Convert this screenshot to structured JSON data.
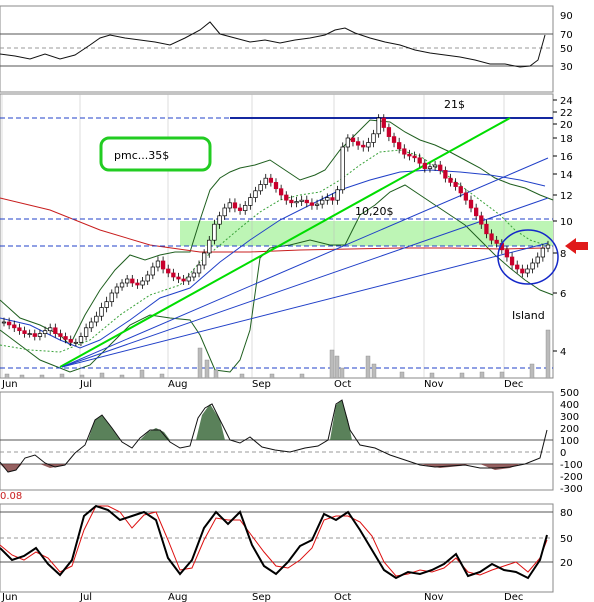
{
  "chart_data": {
    "type": "candlestick",
    "months": [
      "Jun",
      "Jul",
      "Aug",
      "Sep",
      "Oct",
      "Nov",
      "Dec"
    ],
    "price_ticks": [
      4,
      6,
      8,
      10,
      12,
      14,
      16,
      18,
      20,
      22,
      24
    ],
    "rsi_ticks": [
      30,
      50,
      70,
      90
    ],
    "mid_ticks": [
      500,
      400,
      300,
      200,
      100,
      0,
      -100,
      -200,
      -300
    ],
    "stoch_ticks": [
      20,
      50,
      80
    ],
    "corner_label": "0.08",
    "annotations": {
      "target_label": "pmc...35$",
      "resistance_label": "21$",
      "support_label": "10,20$",
      "island_label": "Island"
    },
    "levels": {
      "resistance": 21,
      "support": 10.2,
      "lower_support": 8.4
    },
    "series": [
      {
        "name": "price_close",
        "x": [
          "Jun",
          "Jul",
          "Aug",
          "Sep",
          "Oct",
          "Nov",
          "Dec"
        ],
        "values": [
          4.6,
          5.0,
          6.4,
          11.5,
          17.5,
          11.0,
          8.3
        ]
      }
    ],
    "colors": {
      "up": "#000000",
      "down": "#c8002c",
      "ma_short": "#3aa23a",
      "ma_long": "#c81e1e",
      "bands": "#2e6a2e",
      "trend_green": "#00dd00",
      "trend_blue": "#2140c8",
      "fill_green": "#bdf5b5"
    }
  },
  "chart_logic": "candles"
}
